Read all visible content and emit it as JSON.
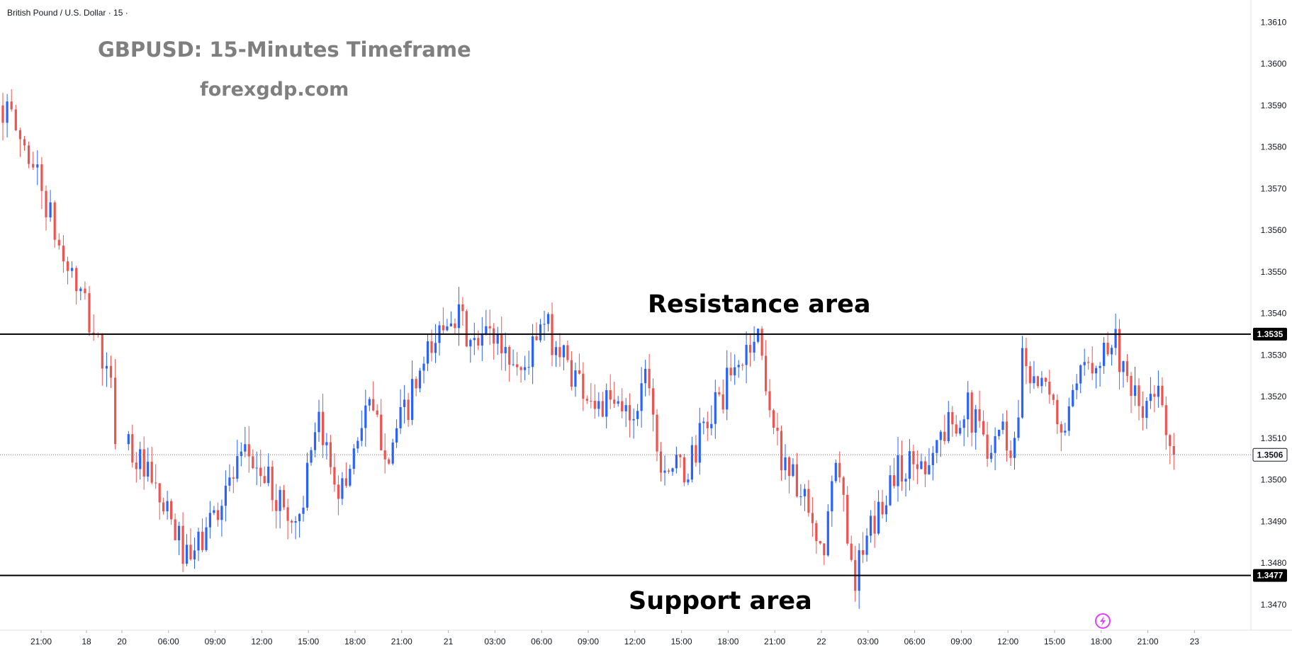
{
  "header": {
    "symbol_title": "British Pound / U.S. Dollar · 15 ·"
  },
  "watermark": {
    "title": "GBPUSD: 15-Minutes Timeframe",
    "site": "forexgdp.com"
  },
  "annotations": {
    "resistance_label": "Resistance area",
    "support_label": "Support area"
  },
  "colors": {
    "bull": "#2962ff",
    "bear": "#ef5350",
    "level_line": "#000000",
    "grid": "#f0f3fa",
    "axis_text": "#131722",
    "watermark": "#7f7f7f",
    "last_price_line": "#787b86"
  },
  "icons": {
    "bottom_right": "lightning-icon"
  },
  "chart_data": {
    "type": "candlestick",
    "title": "GBPUSD: 15-Minutes Timeframe",
    "symbol": "British Pound / U.S. Dollar",
    "interval": "15",
    "ylim": [
      1.3464,
      1.3615
    ],
    "y_ticks": [
      "1.3470",
      "1.3480",
      "1.3490",
      "1.3500",
      "1.3510",
      "1.3520",
      "1.3530",
      "1.3540",
      "1.3550",
      "1.3560",
      "1.3570",
      "1.3580",
      "1.3590",
      "1.3600",
      "1.3610"
    ],
    "x_ticks": [
      "21:00",
      "18",
      "20",
      "06:00",
      "09:00",
      "12:00",
      "15:00",
      "18:00",
      "21:00",
      "21",
      "03:00",
      "06:00",
      "09:00",
      "12:00",
      "15:00",
      "18:00",
      "21:00",
      "22",
      "03:00",
      "06:00",
      "09:00",
      "12:00",
      "15:00",
      "18:00",
      "21:00",
      "23"
    ],
    "levels": [
      {
        "label": "1.3535",
        "value": 1.3535
      },
      {
        "label": "1.3477",
        "value": 1.3477
      }
    ],
    "last_price": {
      "label": "1.3506",
      "value": 1.3506
    },
    "grid": false,
    "path_hours": [
      0,
      1.9,
      3.2,
      4.0,
      5.4,
      6.2,
      6.6,
      10.2,
      10.6,
      13.0,
      14.5,
      17.5,
      19.0,
      20.5,
      22.0,
      23.5,
      27.5,
      29.0,
      30.0,
      32.0,
      33.5,
      35.5,
      37.0,
      39.2,
      40.2,
      40.8,
      42.5,
      44.5,
      45.5,
      47.2,
      48.5,
      49.3,
      50.2,
      51.3,
      52.3,
      53.5,
      56.0,
      58.0,
      60.5,
      62.0,
      62.8,
      63.8,
      64.2,
      66.3,
      67.0,
      68.5,
      70.3,
      71.0,
      72.0,
      73.0,
      74.0
    ],
    "path_prices": [
      1.359,
      1.3575,
      1.3556,
      1.3549,
      1.3534,
      1.3522,
      1.351,
      1.3484,
      1.3479,
      1.3498,
      1.3506,
      1.3489,
      1.3512,
      1.3497,
      1.3518,
      1.3507,
      1.3542,
      1.3531,
      1.3536,
      1.3526,
      1.3537,
      1.3525,
      1.3518,
      1.3516,
      1.3528,
      1.3506,
      1.3501,
      1.3518,
      1.3524,
      1.3536,
      1.3508,
      1.3503,
      1.3494,
      1.348,
      1.3504,
      1.3477,
      1.3502,
      1.3505,
      1.3518,
      1.3509,
      1.3513,
      1.3507,
      1.3531,
      1.3516,
      1.3512,
      1.3529,
      1.3534,
      1.3521,
      1.3516,
      1.3521,
      1.3507
    ]
  }
}
